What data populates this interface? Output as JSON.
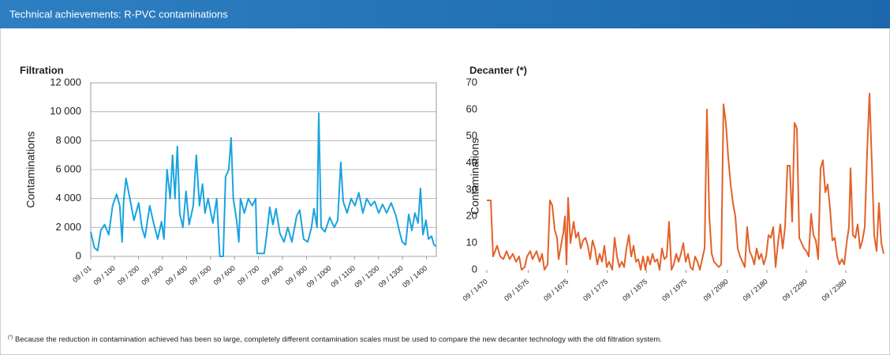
{
  "header": {
    "title": "Technical achievements: R-PVC contaminations"
  },
  "chart_data": [
    {
      "type": "line",
      "title": "Filtration",
      "y_label": "Contaminations",
      "color": "#1aa3e0",
      "grid": true,
      "xlim": [
        1,
        1441
      ],
      "ylim": [
        0,
        12000
      ],
      "yticks": [
        0,
        {
          "value": 2000,
          "label": "2 000"
        },
        {
          "value": 4000,
          "label": "4 000"
        },
        {
          "value": 6000,
          "label": "6 000"
        },
        {
          "value": 8000,
          "label": "8 000"
        },
        {
          "value": 10000,
          "label": "10 000"
        },
        {
          "value": 12000,
          "label": "12 000"
        }
      ],
      "xticks": [
        {
          "value": 1,
          "label": "09 / 01"
        },
        {
          "value": 100,
          "label": "09 / 100"
        },
        {
          "value": 200,
          "label": "09 / 200"
        },
        {
          "value": 300,
          "label": "09 / 300"
        },
        {
          "value": 400,
          "label": "09 / 400"
        },
        {
          "value": 500,
          "label": "09 / 500"
        },
        {
          "value": 600,
          "label": "09 / 600"
        },
        {
          "value": 700,
          "label": "09 / 700"
        },
        {
          "value": 800,
          "label": "09 / 800"
        },
        {
          "value": 900,
          "label": "09 / 900"
        },
        {
          "value": 1000,
          "label": "09 / 1000"
        },
        {
          "value": 1100,
          "label": "09 / 1100"
        },
        {
          "value": 1200,
          "label": "09 / 1200"
        },
        {
          "value": 1300,
          "label": "09 / 1300"
        },
        {
          "value": 1400,
          "label": "09 / 1400"
        }
      ],
      "x": [
        1,
        16,
        30,
        43,
        59,
        76,
        92,
        109,
        122,
        132,
        138,
        148,
        164,
        181,
        201,
        214,
        227,
        247,
        263,
        280,
        296,
        306,
        319,
        332,
        342,
        352,
        362,
        372,
        385,
        398,
        411,
        428,
        441,
        454,
        467,
        477,
        490,
        510,
        526,
        539,
        553,
        563,
        576,
        586,
        595,
        609,
        618,
        625,
        641,
        658,
        674,
        688,
        694,
        724,
        734,
        747,
        760,
        773,
        789,
        806,
        822,
        839,
        859,
        872,
        888,
        905,
        921,
        931,
        944,
        951,
        961,
        977,
        997,
        1016,
        1030,
        1043,
        1053,
        1069,
        1086,
        1102,
        1118,
        1135,
        1151,
        1168,
        1184,
        1201,
        1217,
        1234,
        1253,
        1273,
        1286,
        1299,
        1313,
        1326,
        1339,
        1352,
        1365,
        1375,
        1385,
        1398,
        1408,
        1421,
        1431,
        1441
      ],
      "values": [
        1700,
        600,
        400,
        1800,
        2200,
        1500,
        3500,
        4300,
        3500,
        1000,
        3800,
        5400,
        4000,
        2500,
        3700,
        2000,
        1300,
        3500,
        2300,
        1200,
        2400,
        1200,
        6000,
        4000,
        7000,
        4000,
        7600,
        3000,
        2000,
        4500,
        2200,
        3500,
        7000,
        3500,
        5000,
        3000,
        4000,
        2300,
        4000,
        0,
        0,
        5500,
        6000,
        8200,
        4000,
        2500,
        1000,
        4000,
        3000,
        4000,
        3500,
        4000,
        200,
        200,
        1500,
        3400,
        2200,
        3300,
        1600,
        1000,
        2000,
        1000,
        2800,
        3200,
        1200,
        1000,
        2000,
        3300,
        2000,
        9900,
        2000,
        1700,
        2700,
        2000,
        2500,
        6500,
        3800,
        3000,
        4000,
        3500,
        4400,
        3000,
        4000,
        3500,
        3800,
        3000,
        3600,
        3000,
        3700,
        2800,
        1800,
        1000,
        800,
        2900,
        1800,
        3000,
        2300,
        4700,
        1500,
        2500,
        1200,
        1400,
        800,
        700
      ]
    },
    {
      "type": "line",
      "title": "Decanter (*)",
      "y_label": "Contaminations",
      "color": "#e2622a",
      "grid": false,
      "xlim": [
        1470,
        2476
      ],
      "ylim": [
        0,
        70
      ],
      "yticks": [
        0,
        10,
        20,
        30,
        40,
        50,
        60,
        70
      ],
      "xticks": [
        {
          "value": 1470,
          "label": "09 / 1470"
        },
        {
          "value": 1575,
          "label": "09 / 1575"
        },
        {
          "value": 1675,
          "label": "09 / 1675"
        },
        {
          "value": 1775,
          "label": "09 / 1775"
        },
        {
          "value": 1875,
          "label": "09 / 1875"
        },
        {
          "value": 1975,
          "label": "09 / 1975"
        },
        {
          "value": 2080,
          "label": "09 / 2080"
        },
        {
          "value": 2180,
          "label": "09 / 2180"
        },
        {
          "value": 2280,
          "label": "09 / 2280"
        },
        {
          "value": 2380,
          "label": "09 / 2380"
        }
      ],
      "x": [
        1470,
        1480,
        1486,
        1496,
        1504,
        1512,
        1520,
        1528,
        1536,
        1544,
        1552,
        1558,
        1566,
        1572,
        1580,
        1586,
        1596,
        1604,
        1610,
        1616,
        1624,
        1630,
        1636,
        1642,
        1648,
        1652,
        1658,
        1664,
        1668,
        1672,
        1676,
        1682,
        1690,
        1696,
        1702,
        1708,
        1714,
        1720,
        1726,
        1732,
        1738,
        1744,
        1750,
        1756,
        1762,
        1768,
        1774,
        1780,
        1788,
        1794,
        1800,
        1806,
        1812,
        1818,
        1824,
        1830,
        1836,
        1842,
        1848,
        1854,
        1860,
        1866,
        1872,
        1878,
        1884,
        1890,
        1896,
        1902,
        1908,
        1914,
        1920,
        1926,
        1932,
        1938,
        1944,
        1950,
        1956,
        1962,
        1968,
        1974,
        1980,
        1986,
        1992,
        1998,
        2004,
        2010,
        2016,
        2022,
        2028,
        2034,
        2040,
        2046,
        2052,
        2058,
        2064,
        2070,
        2076,
        2082,
        2088,
        2094,
        2100,
        2106,
        2112,
        2118,
        2124,
        2130,
        2136,
        2142,
        2148,
        2154,
        2160,
        2166,
        2172,
        2178,
        2184,
        2190,
        2196,
        2202,
        2208,
        2214,
        2220,
        2226,
        2232,
        2238,
        2244,
        2250,
        2256,
        2262,
        2268,
        2274,
        2280,
        2286,
        2292,
        2298,
        2304,
        2310,
        2316,
        2322,
        2328,
        2334,
        2340,
        2346,
        2352,
        2358,
        2364,
        2370,
        2376,
        2382,
        2388,
        2392,
        2398,
        2404,
        2410,
        2416,
        2422,
        2428,
        2434,
        2440,
        2446,
        2452,
        2458,
        2464,
        2470,
        2476
      ],
      "values": [
        26,
        26,
        5,
        9,
        5,
        4,
        7,
        4,
        6,
        3,
        5,
        0,
        1,
        5,
        7,
        4,
        7,
        3,
        6,
        0,
        2,
        26,
        24,
        15,
        12,
        4,
        9,
        14,
        20,
        2,
        27,
        10,
        18,
        12,
        14,
        8,
        11,
        12,
        9,
        4,
        11,
        8,
        2,
        6,
        3,
        9,
        1,
        3,
        0,
        12,
        5,
        1,
        3,
        1,
        8,
        13,
        5,
        9,
        3,
        4,
        0,
        5,
        0,
        5,
        2,
        6,
        3,
        4,
        0,
        8,
        4,
        5,
        18,
        0,
        2,
        6,
        3,
        6,
        10,
        3,
        6,
        1,
        0,
        5,
        3,
        0,
        4,
        8,
        60,
        20,
        6,
        3,
        2,
        1,
        2,
        62,
        55,
        42,
        32,
        25,
        20,
        8,
        5,
        3,
        1,
        16,
        7,
        5,
        2,
        8,
        4,
        6,
        2,
        5,
        13,
        12,
        16,
        1,
        10,
        17,
        8,
        16,
        39,
        39,
        18,
        55,
        53,
        12,
        10,
        8,
        7,
        5,
        21,
        13,
        11,
        4,
        38,
        41,
        29,
        32,
        23,
        11,
        12,
        5,
        2,
        4,
        2,
        10,
        16,
        38,
        13,
        12,
        17,
        8,
        11,
        16,
        44,
        66,
        40,
        13,
        7,
        25,
        10,
        6
      ]
    }
  ],
  "footnote": {
    "marker": "(*)",
    "text": " Because the reduction in contamination achieved has been so large, completely different contamination scales must be used to compare the new decanter technology with the old filtration system."
  }
}
